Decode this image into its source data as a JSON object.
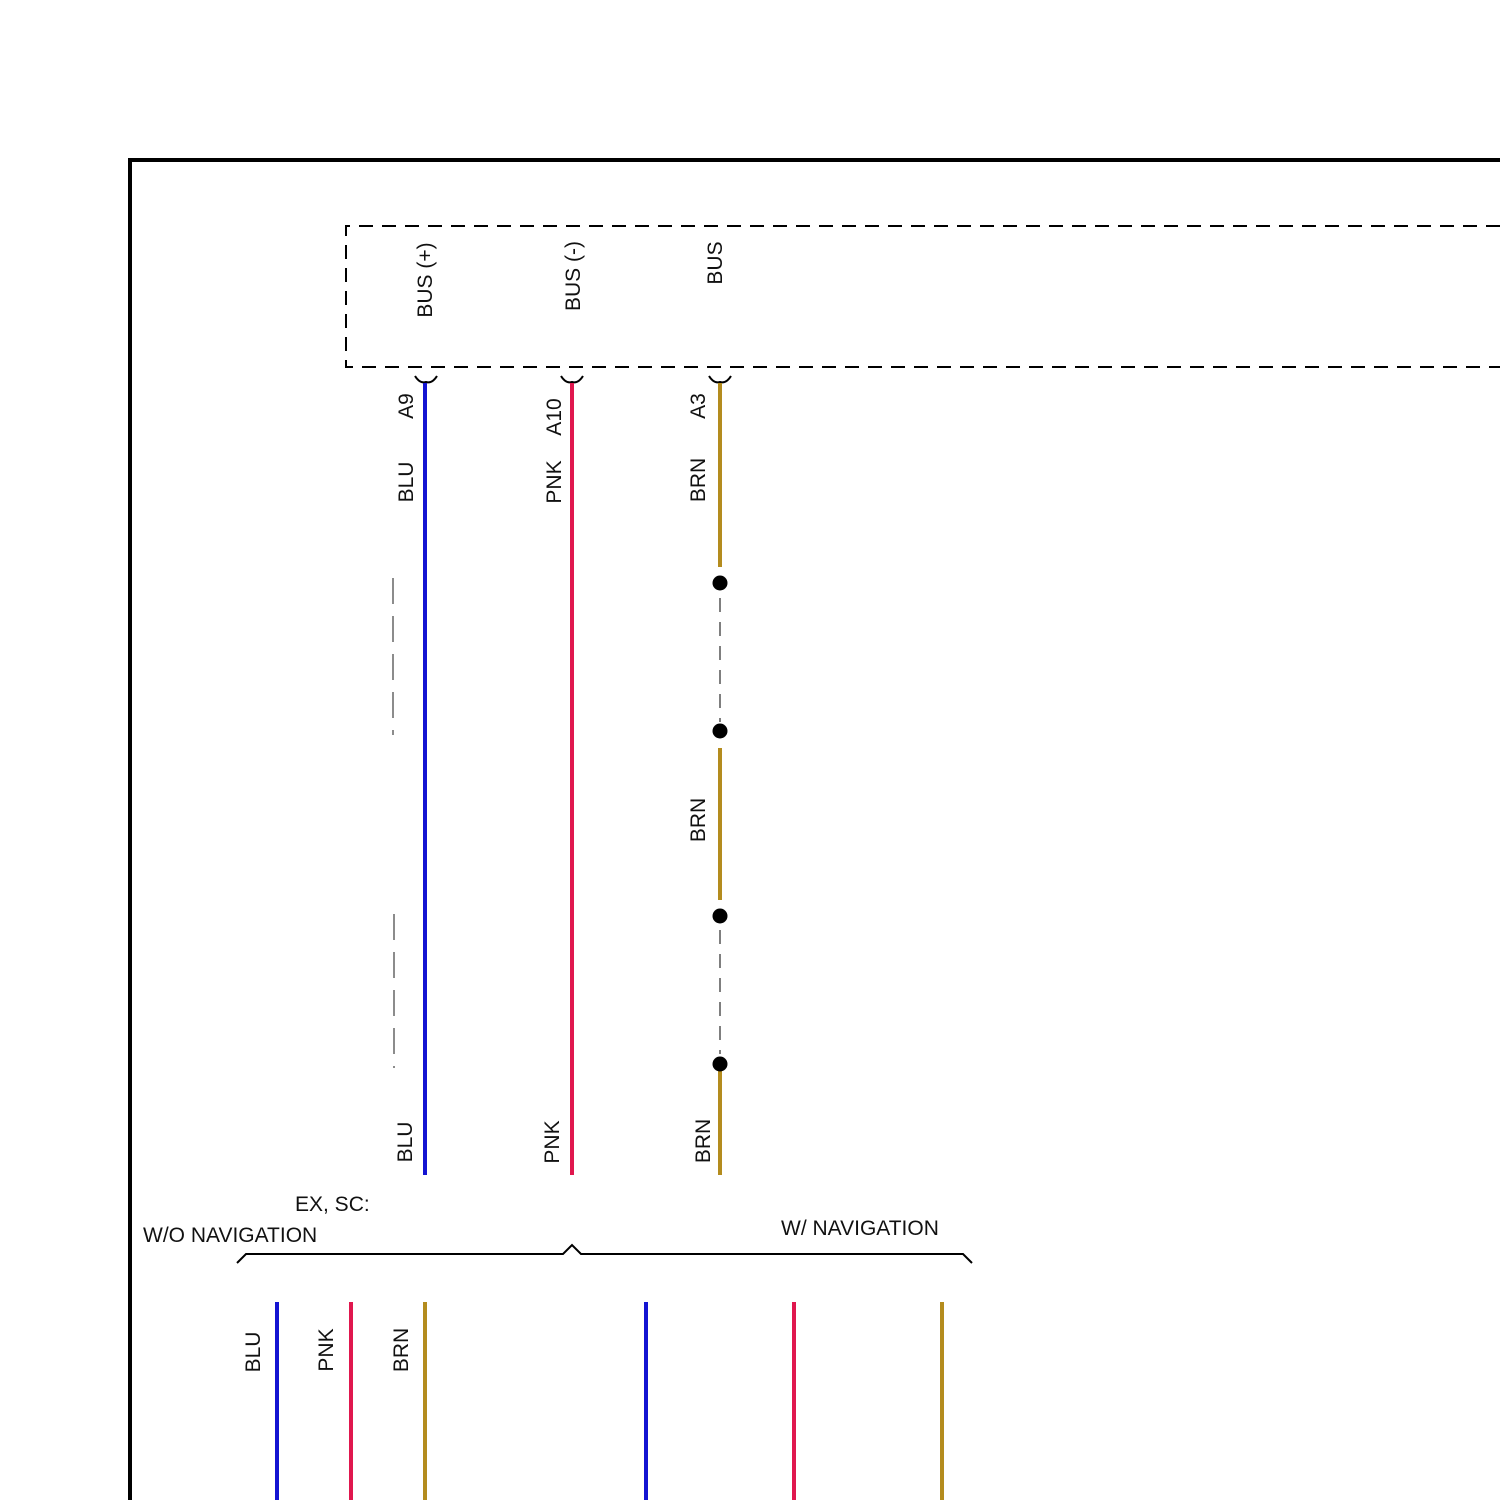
{
  "module": {
    "pins": [
      {
        "name": "BUS (+)",
        "terminal": "A9"
      },
      {
        "name": "BUS (-)",
        "terminal": "A10"
      },
      {
        "name": "BUS",
        "terminal": "A3"
      }
    ]
  },
  "wires": {
    "blue": {
      "color_code": "BLU",
      "color": "#1414d2"
    },
    "pink": {
      "color_code": "PNK",
      "color": "#e0174e"
    },
    "brown": {
      "color_code": "BRN",
      "color": "#b48c1e"
    }
  },
  "bottom_labels": {
    "blue": "BLU",
    "pink": "PNK",
    "brown": "BRN"
  },
  "branches": {
    "condition_header": "EX, SC:",
    "left": {
      "label": "W/O NAVIGATION",
      "wires": [
        "BLU",
        "PNK",
        "BRN"
      ]
    },
    "right": {
      "label": "W/ NAVIGATION"
    }
  }
}
